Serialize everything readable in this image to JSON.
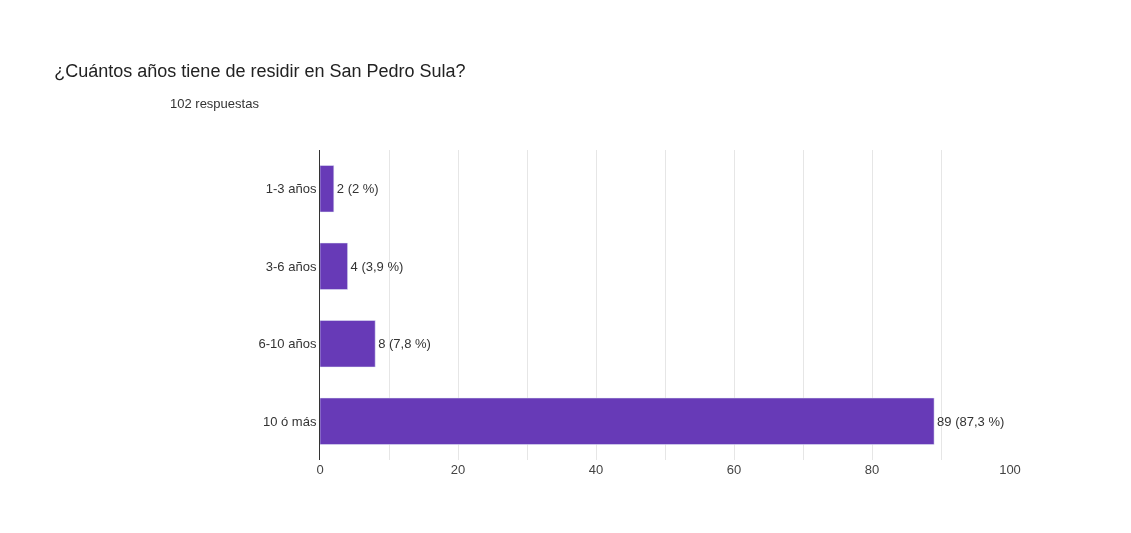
{
  "chart_data": {
    "type": "bar",
    "orientation": "horizontal",
    "title": "¿Cuántos años tiene de residir en San Pedro Sula?",
    "subtitle": "102 respuestas",
    "categories": [
      "1-3 años",
      "3-6 años",
      "6-10 años",
      "10 ó más"
    ],
    "values": [
      2,
      4,
      8,
      89
    ],
    "value_labels": [
      "2 (2 %)",
      "4 (3,9 %)",
      "8 (7,8 %)",
      "89 (87,3 %)"
    ],
    "color": "#673ab7",
    "xlim": [
      0,
      100
    ],
    "xticks": [
      0,
      {
        "value": 10,
        "label": null
      },
      20,
      {
        "value": 30,
        "label": null
      },
      40,
      {
        "value": 50,
        "label": null
      },
      60,
      {
        "value": 70,
        "label": null
      },
      80,
      {
        "value": 90,
        "label": null
      },
      100
    ],
    "grid": "x",
    "legend": false
  }
}
